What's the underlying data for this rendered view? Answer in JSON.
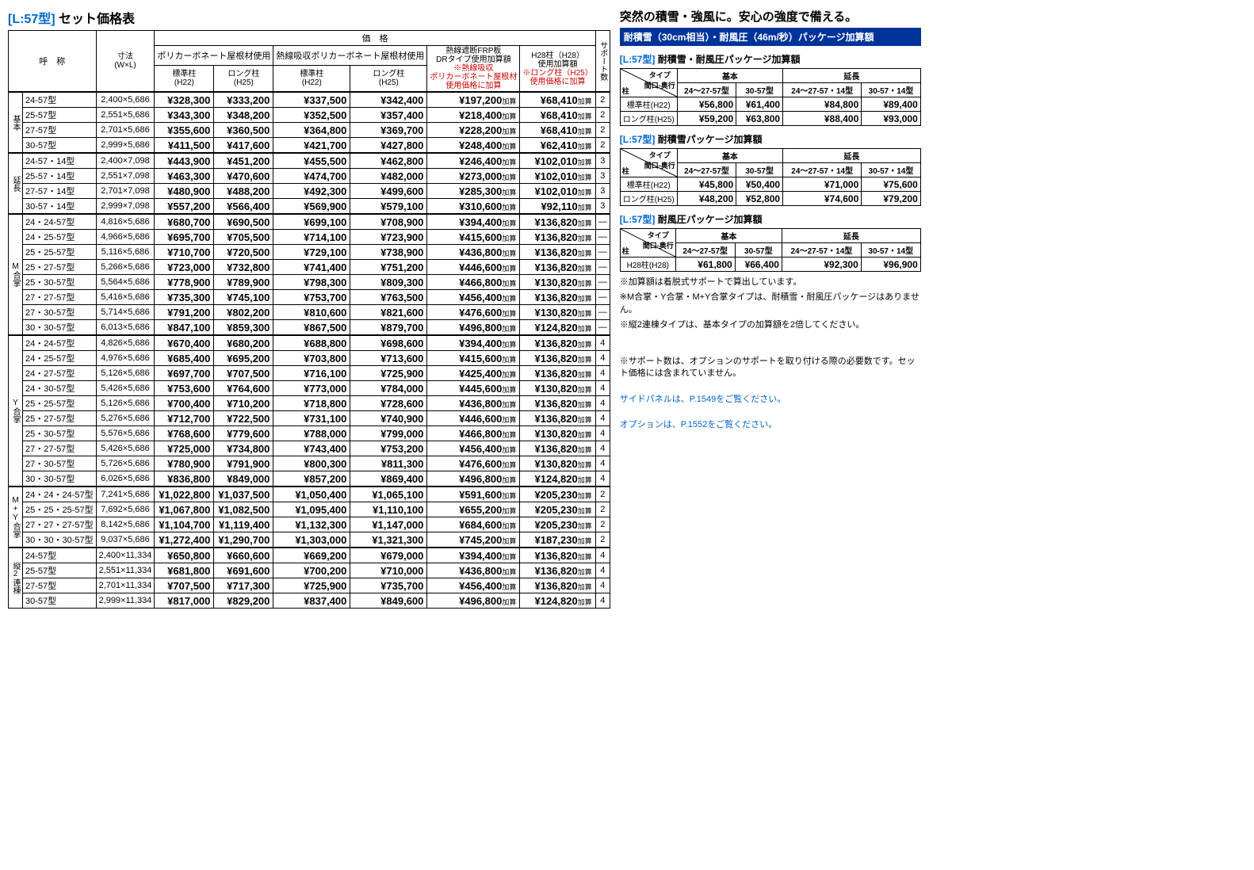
{
  "title_prefix": "[L:57型]",
  "title_main": "セット価格表",
  "main_headers": {
    "name": "呼　称",
    "dim": "寸法\n(W×L)",
    "price": "価　格",
    "poly": "ポリカーボネート屋根材使用",
    "heat": "熱線吸収ポリカーボネート屋根材使用",
    "frp": "熱線遮断FRP板\nDRタイプ使用加算額",
    "frp_note": "※熱線吸収\nポリカーボネート屋根材\n使用価格に加算",
    "h28": "H28柱（H28）\n使用加算額",
    "h28_note": "※ロング柱（H25）\n使用価格に加算",
    "std": "標準柱\n(H22)",
    "long": "ロング柱\n(H25)",
    "support": "サポート数"
  },
  "groups": [
    {
      "label": "基本",
      "rows": [
        {
          "n": "24-57型",
          "d": "2,400×5,686",
          "p": [
            "¥328,300",
            "¥333,200",
            "¥337,500",
            "¥342,400",
            "¥197,200",
            "¥68,410"
          ],
          "s": "2"
        },
        {
          "n": "25-57型",
          "d": "2,551×5,686",
          "p": [
            "¥343,300",
            "¥348,200",
            "¥352,500",
            "¥357,400",
            "¥218,400",
            "¥68,410"
          ],
          "s": "2"
        },
        {
          "n": "27-57型",
          "d": "2,701×5,686",
          "p": [
            "¥355,600",
            "¥360,500",
            "¥364,800",
            "¥369,700",
            "¥228,200",
            "¥68,410"
          ],
          "s": "2"
        },
        {
          "n": "30-57型",
          "d": "2,999×5,686",
          "p": [
            "¥411,500",
            "¥417,600",
            "¥421,700",
            "¥427,800",
            "¥248,400",
            "¥62,410"
          ],
          "s": "2"
        }
      ]
    },
    {
      "label": "延長",
      "rows": [
        {
          "n": "24-57・14型",
          "d": "2,400×7,098",
          "p": [
            "¥443,900",
            "¥451,200",
            "¥455,500",
            "¥462,800",
            "¥246,400",
            "¥102,010"
          ],
          "s": "3"
        },
        {
          "n": "25-57・14型",
          "d": "2,551×7,098",
          "p": [
            "¥463,300",
            "¥470,600",
            "¥474,700",
            "¥482,000",
            "¥273,000",
            "¥102,010"
          ],
          "s": "3"
        },
        {
          "n": "27-57・14型",
          "d": "2,701×7,098",
          "p": [
            "¥480,900",
            "¥488,200",
            "¥492,300",
            "¥499,600",
            "¥285,300",
            "¥102,010"
          ],
          "s": "3"
        },
        {
          "n": "30-57・14型",
          "d": "2,999×7,098",
          "p": [
            "¥557,200",
            "¥566,400",
            "¥569,900",
            "¥579,100",
            "¥310,600",
            "¥92,110"
          ],
          "s": "3"
        }
      ]
    },
    {
      "label": "M合掌",
      "rows": [
        {
          "n": "24・24-57型",
          "d": "4,816×5,686",
          "p": [
            "¥680,700",
            "¥690,500",
            "¥699,100",
            "¥708,900",
            "¥394,400",
            "¥136,820"
          ],
          "s": "—"
        },
        {
          "n": "24・25-57型",
          "d": "4,966×5,686",
          "p": [
            "¥695,700",
            "¥705,500",
            "¥714,100",
            "¥723,900",
            "¥415,600",
            "¥136,820"
          ],
          "s": "—"
        },
        {
          "n": "25・25-57型",
          "d": "5,116×5,686",
          "p": [
            "¥710,700",
            "¥720,500",
            "¥729,100",
            "¥738,900",
            "¥436,800",
            "¥136,820"
          ],
          "s": "—"
        },
        {
          "n": "25・27-57型",
          "d": "5,266×5,686",
          "p": [
            "¥723,000",
            "¥732,800",
            "¥741,400",
            "¥751,200",
            "¥446,600",
            "¥136,820"
          ],
          "s": "—"
        },
        {
          "n": "25・30-57型",
          "d": "5,564×5,686",
          "p": [
            "¥778,900",
            "¥789,900",
            "¥798,300",
            "¥809,300",
            "¥466,800",
            "¥130,820"
          ],
          "s": "—"
        },
        {
          "n": "27・27-57型",
          "d": "5,416×5,686",
          "p": [
            "¥735,300",
            "¥745,100",
            "¥753,700",
            "¥763,500",
            "¥456,400",
            "¥136,820"
          ],
          "s": "—"
        },
        {
          "n": "27・30-57型",
          "d": "5,714×5,686",
          "p": [
            "¥791,200",
            "¥802,200",
            "¥810,600",
            "¥821,600",
            "¥476,600",
            "¥130,820"
          ],
          "s": "—"
        },
        {
          "n": "30・30-57型",
          "d": "6,013×5,686",
          "p": [
            "¥847,100",
            "¥859,300",
            "¥867,500",
            "¥879,700",
            "¥496,800",
            "¥124,820"
          ],
          "s": "—"
        }
      ]
    },
    {
      "label": "Y合掌",
      "rows": [
        {
          "n": "24・24-57型",
          "d": "4,826×5,686",
          "p": [
            "¥670,400",
            "¥680,200",
            "¥688,800",
            "¥698,600",
            "¥394,400",
            "¥136,820"
          ],
          "s": "4"
        },
        {
          "n": "24・25-57型",
          "d": "4,976×5,686",
          "p": [
            "¥685,400",
            "¥695,200",
            "¥703,800",
            "¥713,600",
            "¥415,600",
            "¥136,820"
          ],
          "s": "4"
        },
        {
          "n": "24・27-57型",
          "d": "5,126×5,686",
          "p": [
            "¥697,700",
            "¥707,500",
            "¥716,100",
            "¥725,900",
            "¥425,400",
            "¥136,820"
          ],
          "s": "4"
        },
        {
          "n": "24・30-57型",
          "d": "5,426×5,686",
          "p": [
            "¥753,600",
            "¥764,600",
            "¥773,000",
            "¥784,000",
            "¥445,600",
            "¥130,820"
          ],
          "s": "4"
        },
        {
          "n": "25・25-57型",
          "d": "5,126×5,686",
          "p": [
            "¥700,400",
            "¥710,200",
            "¥718,800",
            "¥728,600",
            "¥436,800",
            "¥136,820"
          ],
          "s": "4"
        },
        {
          "n": "25・27-57型",
          "d": "5,276×5,686",
          "p": [
            "¥712,700",
            "¥722,500",
            "¥731,100",
            "¥740,900",
            "¥446,600",
            "¥136,820"
          ],
          "s": "4"
        },
        {
          "n": "25・30-57型",
          "d": "5,576×5,686",
          "p": [
            "¥768,600",
            "¥779,600",
            "¥788,000",
            "¥799,000",
            "¥466,800",
            "¥130,820"
          ],
          "s": "4"
        },
        {
          "n": "27・27-57型",
          "d": "5,426×5,686",
          "p": [
            "¥725,000",
            "¥734,800",
            "¥743,400",
            "¥753,200",
            "¥456,400",
            "¥136,820"
          ],
          "s": "4"
        },
        {
          "n": "27・30-57型",
          "d": "5,726×5,686",
          "p": [
            "¥780,900",
            "¥791,900",
            "¥800,300",
            "¥811,300",
            "¥476,600",
            "¥130,820"
          ],
          "s": "4"
        },
        {
          "n": "30・30-57型",
          "d": "6,026×5,686",
          "p": [
            "¥836,800",
            "¥849,000",
            "¥857,200",
            "¥869,400",
            "¥496,800",
            "¥124,820"
          ],
          "s": "4"
        }
      ]
    },
    {
      "label": "M+Y合掌",
      "rows": [
        {
          "n": "24・24・24-57型",
          "d": "7,241×5,686",
          "p": [
            "¥1,022,800",
            "¥1,037,500",
            "¥1,050,400",
            "¥1,065,100",
            "¥591,600",
            "¥205,230"
          ],
          "s": "2"
        },
        {
          "n": "25・25・25-57型",
          "d": "7,692×5,686",
          "p": [
            "¥1,067,800",
            "¥1,082,500",
            "¥1,095,400",
            "¥1,110,100",
            "¥655,200",
            "¥205,230"
          ],
          "s": "2"
        },
        {
          "n": "27・27・27-57型",
          "d": "8,142×5,686",
          "p": [
            "¥1,104,700",
            "¥1,119,400",
            "¥1,132,300",
            "¥1,147,000",
            "¥684,600",
            "¥205,230"
          ],
          "s": "2"
        },
        {
          "n": "30・30・30-57型",
          "d": "9,037×5,686",
          "p": [
            "¥1,272,400",
            "¥1,290,700",
            "¥1,303,000",
            "¥1,321,300",
            "¥745,200",
            "¥187,230"
          ],
          "s": "2"
        }
      ]
    },
    {
      "label": "縦2連棟",
      "rows": [
        {
          "n": "24-57型",
          "d": "2,400×11,334",
          "p": [
            "¥650,800",
            "¥660,600",
            "¥669,200",
            "¥679,000",
            "¥394,400",
            "¥136,820"
          ],
          "s": "4"
        },
        {
          "n": "25-57型",
          "d": "2,551×11,334",
          "p": [
            "¥681,800",
            "¥691,600",
            "¥700,200",
            "¥710,000",
            "¥436,800",
            "¥136,820"
          ],
          "s": "4"
        },
        {
          "n": "27-57型",
          "d": "2,701×11,334",
          "p": [
            "¥707,500",
            "¥717,300",
            "¥725,900",
            "¥735,700",
            "¥456,400",
            "¥136,820"
          ],
          "s": "4"
        },
        {
          "n": "30-57型",
          "d": "2,999×11,334",
          "p": [
            "¥817,000",
            "¥829,200",
            "¥837,400",
            "¥849,600",
            "¥496,800",
            "¥124,820"
          ],
          "s": "4"
        }
      ]
    }
  ],
  "right": {
    "headline": "突然の積雪・強風に。安心の強度で備える。",
    "bluebar": "耐積雪（30cm相当）・耐風圧（46m/秒）パッケージ加算額",
    "diag_tl": "タイプ\n間口-奥行",
    "diag_bl": "柱",
    "col_basic": "基本",
    "col_ext": "延長",
    "cols": [
      "24～27-57型",
      "30-57型",
      "24～27-57・14型",
      "30-57・14型"
    ],
    "pkgs": [
      {
        "title": "耐積雪・耐風圧パッケージ加算額",
        "rows": [
          {
            "l": "標準柱(H22)",
            "v": [
              "¥56,800",
              "¥61,400",
              "¥84,800",
              "¥89,400"
            ]
          },
          {
            "l": "ロング柱(H25)",
            "v": [
              "¥59,200",
              "¥63,800",
              "¥88,400",
              "¥93,000"
            ]
          }
        ]
      },
      {
        "title": "耐積雪パッケージ加算額",
        "rows": [
          {
            "l": "標準柱(H22)",
            "v": [
              "¥45,800",
              "¥50,400",
              "¥71,000",
              "¥75,600"
            ]
          },
          {
            "l": "ロング柱(H25)",
            "v": [
              "¥48,200",
              "¥52,800",
              "¥74,600",
              "¥79,200"
            ]
          }
        ]
      },
      {
        "title": "耐風圧パッケージ加算額",
        "rows": [
          {
            "l": "H28柱(H28)",
            "v": [
              "¥61,800",
              "¥66,400",
              "¥92,300",
              "¥96,900"
            ]
          }
        ]
      }
    ],
    "notes": [
      "※加算額は着脱式サポートで算出しています。",
      "※M合掌・Y合掌・M+Y合掌タイプは、耐積雪・耐風圧パッケージはありません。",
      "※縦2連棟タイプは、基本タイプの加算額を2倍してください。"
    ],
    "support_note": "※サポート数は、オプションのサポートを取り付ける際の必要数です。セット価格には含まれていません。",
    "blue_notes": [
      "サイドパネルは、P.1549をご覧ください。",
      "オプションは、P.1552をご覧ください。"
    ]
  }
}
